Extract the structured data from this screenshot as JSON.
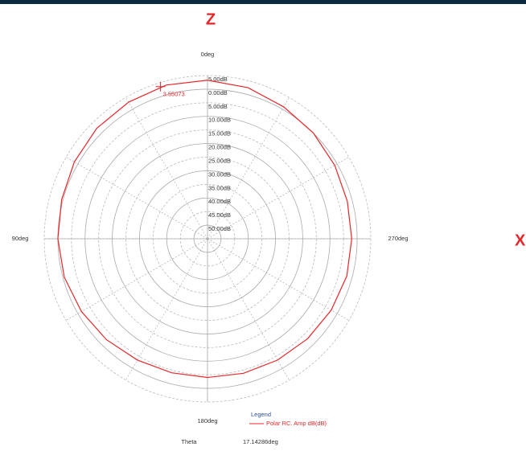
{
  "chart_data": {
    "type": "polar",
    "top_label": "Z",
    "side_label": "X",
    "rlim": [
      -55,
      5
    ],
    "rticks": [
      {
        "value": 5,
        "label": "5.00dB"
      },
      {
        "value": 0,
        "label": "0.00dB"
      },
      {
        "value": -5,
        "label": "5.00dB"
      },
      {
        "value": -10,
        "label": "10.00dB"
      },
      {
        "value": -15,
        "label": "15.00dB"
      },
      {
        "value": -20,
        "label": "20.00dB"
      },
      {
        "value": -25,
        "label": "25.00dB"
      },
      {
        "value": -30,
        "label": "30.00dB"
      },
      {
        "value": -35,
        "label": "35.00dB"
      },
      {
        "value": -40,
        "label": "40.00dB"
      },
      {
        "value": -45,
        "label": "45.00dB"
      },
      {
        "value": -50,
        "label": "50.00dB"
      }
    ],
    "angle_ticks": [
      {
        "value": 0,
        "label": "0deg"
      },
      {
        "value": 90,
        "label": "90deg"
      },
      {
        "value": 180,
        "label": "180deg"
      },
      {
        "value": 270,
        "label": "270deg"
      }
    ],
    "angle_grid": [
      0,
      30,
      60,
      90,
      120,
      150,
      180,
      210,
      240,
      270,
      300,
      330
    ],
    "legend_title": "Legend",
    "series": [
      {
        "name": "Polar RC. Amp dB(dB)",
        "color": "#e8262a",
        "theta": [
          0,
          15,
          30,
          45,
          60,
          75,
          90,
          105,
          120,
          135,
          150,
          165,
          180,
          195,
          210,
          225,
          240,
          255,
          270,
          285,
          300,
          315,
          330,
          345
        ],
        "values": [
          3.3,
          3.5,
          3.0,
          2.5,
          1.5,
          0.5,
          0.0,
          -0.5,
          -1.5,
          -2.5,
          -3.5,
          -4.0,
          -4.0,
          -3.8,
          -3.5,
          -3.0,
          -2.5,
          -2.0,
          -2.0,
          -1.8,
          -1.0,
          0.0,
          1.0,
          2.5
        ]
      }
    ],
    "cursor": {
      "theta": {
        "value": 17.14286,
        "label": "17.14286deg"
      },
      "value": 3.55073
    },
    "theta_label": "Theta"
  }
}
